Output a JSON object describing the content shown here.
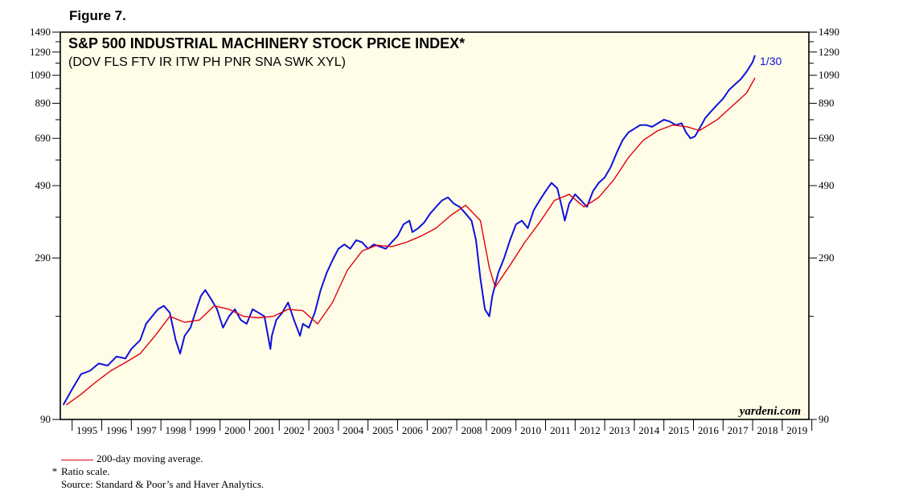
{
  "figure_label": "Figure 7.",
  "watermark": "yardeni.com",
  "end_label": "1/30",
  "colors": {
    "plot_bg": "#fffde8",
    "price": "#1010dd",
    "ma": "#e0000b",
    "axis": "#000000"
  },
  "legend": {
    "ma_label": "200-day moving average.",
    "ratio_note_marker": "*",
    "ratio_note": "Ratio scale.",
    "source": "Source: Standard & Poor’s and Haver Analytics."
  },
  "chart_data": {
    "type": "line",
    "title": "S&P 500 INDUSTRIAL MACHINERY STOCK PRICE INDEX*",
    "subtitle": "(DOV FLS FTV IR ITW PH PNR SNA SWK XYL)",
    "y_scale": "log",
    "ylim": [
      90,
      1490
    ],
    "xlim": [
      1994.6,
      2019.9
    ],
    "y_ticks": [
      90,
      290,
      490,
      690,
      890,
      1090,
      1290,
      1490
    ],
    "y_minor_ticks": [
      190,
      390,
      590,
      790,
      990,
      1190,
      1390
    ],
    "x_tick_labels": [
      "1995",
      "1996",
      "1997",
      "1998",
      "1999",
      "2000",
      "2001",
      "2002",
      "2003",
      "2004",
      "2005",
      "2006",
      "2007",
      "2008",
      "2009",
      "2010",
      "2011",
      "2012",
      "2013",
      "2014",
      "2015",
      "2016",
      "2017",
      "2018",
      "2019"
    ],
    "series": [
      {
        "name": "S&P 500 Industrial Machinery Stock Price Index",
        "x": [
          1994.7,
          1995.0,
          1995.3,
          1995.6,
          1995.9,
          1996.2,
          1996.5,
          1996.8,
          1997.0,
          1997.3,
          1997.5,
          1997.7,
          1997.9,
          1998.1,
          1998.3,
          1998.5,
          1998.65,
          1998.8,
          1999.0,
          1999.2,
          1999.35,
          1999.5,
          1999.7,
          1999.9,
          2000.1,
          2000.3,
          2000.5,
          2000.7,
          2000.9,
          2001.1,
          2001.3,
          2001.5,
          2001.7,
          2001.75,
          2001.9,
          2002.1,
          2002.3,
          2002.5,
          2002.7,
          2002.8,
          2003.0,
          2003.2,
          2003.4,
          2003.6,
          2003.8,
          2004.0,
          2004.2,
          2004.4,
          2004.6,
          2004.8,
          2005.0,
          2005.2,
          2005.4,
          2005.6,
          2005.8,
          2006.0,
          2006.2,
          2006.4,
          2006.5,
          2006.7,
          2006.9,
          2007.1,
          2007.3,
          2007.5,
          2007.7,
          2007.9,
          2008.1,
          2008.3,
          2008.5,
          2008.65,
          2008.8,
          2008.95,
          2009.1,
          2009.2,
          2009.4,
          2009.6,
          2009.8,
          2010.0,
          2010.2,
          2010.4,
          2010.6,
          2010.8,
          2011.0,
          2011.2,
          2011.4,
          2011.55,
          2011.65,
          2011.8,
          2012.0,
          2012.2,
          2012.4,
          2012.6,
          2012.8,
          2013.0,
          2013.2,
          2013.4,
          2013.6,
          2013.8,
          2014.0,
          2014.2,
          2014.4,
          2014.6,
          2014.8,
          2015.0,
          2015.2,
          2015.4,
          2015.6,
          2015.75,
          2015.9,
          2016.05,
          2016.2,
          2016.4,
          2016.6,
          2016.8,
          2017.0,
          2017.2,
          2017.4,
          2017.6,
          2017.8,
          2018.0,
          2018.08
        ],
        "values": [
          100,
          112,
          125,
          128,
          135,
          133,
          142,
          140,
          150,
          160,
          180,
          190,
          200,
          205,
          195,
          160,
          145,
          165,
          175,
          200,
          220,
          230,
          215,
          200,
          175,
          190,
          200,
          185,
          180,
          200,
          195,
          190,
          150,
          165,
          185,
          195,
          210,
          185,
          165,
          180,
          175,
          195,
          230,
          260,
          285,
          310,
          320,
          310,
          330,
          325,
          310,
          320,
          315,
          310,
          325,
          340,
          370,
          380,
          350,
          360,
          375,
          400,
          420,
          440,
          450,
          430,
          420,
          400,
          380,
          330,
          250,
          200,
          190,
          220,
          260,
          290,
          330,
          370,
          380,
          360,
          410,
          440,
          470,
          500,
          480,
          420,
          380,
          430,
          460,
          440,
          420,
          470,
          500,
          520,
          560,
          620,
          680,
          720,
          740,
          760,
          760,
          750,
          770,
          790,
          780,
          760,
          770,
          720,
          690,
          700,
          740,
          800,
          840,
          880,
          920,
          980,
          1020,
          1060,
          1120,
          1200,
          1260
        ]
      },
      {
        "name": "200-day moving average",
        "x": [
          1994.8,
          1995.3,
          1995.8,
          1996.3,
          1996.8,
          1997.3,
          1997.8,
          1998.3,
          1998.8,
          1999.3,
          1999.8,
          2000.3,
          2000.8,
          2001.3,
          2001.8,
          2002.3,
          2002.8,
          2003.3,
          2003.8,
          2004.3,
          2004.8,
          2005.3,
          2005.8,
          2006.3,
          2006.8,
          2007.3,
          2007.8,
          2008.3,
          2008.8,
          2009.1,
          2009.3,
          2009.8,
          2010.3,
          2010.8,
          2011.3,
          2011.8,
          2012.3,
          2012.8,
          2013.3,
          2013.8,
          2014.3,
          2014.8,
          2015.3,
          2015.8,
          2016.2,
          2016.8,
          2017.3,
          2017.8,
          2018.08
        ],
        "values": [
          100,
          108,
          118,
          128,
          136,
          145,
          165,
          190,
          182,
          185,
          205,
          200,
          190,
          188,
          190,
          200,
          198,
          180,
          210,
          265,
          305,
          318,
          315,
          325,
          340,
          360,
          395,
          425,
          380,
          270,
          235,
          275,
          325,
          375,
          440,
          460,
          420,
          450,
          510,
          600,
          680,
          730,
          760,
          750,
          730,
          790,
          870,
          960,
          1070
        ]
      }
    ]
  }
}
